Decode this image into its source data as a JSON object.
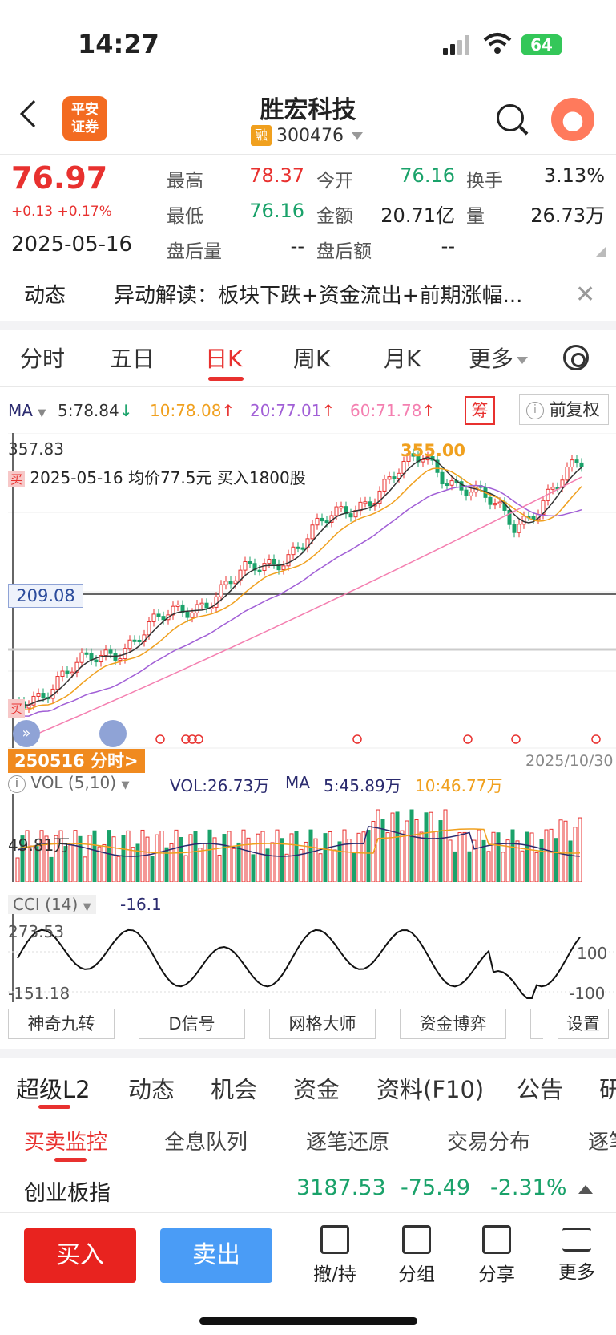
{
  "status": {
    "time": "14:27",
    "battery": "64"
  },
  "header": {
    "broker_logo": "平安\n证券",
    "name": "胜宏科技",
    "badge": "融",
    "code": "300476"
  },
  "quote": {
    "price": "76.97",
    "change": "+0.13 +0.17%",
    "date": "2025-05-16",
    "fields": [
      {
        "label": "最高",
        "value": "78.37",
        "color": "red"
      },
      {
        "label": "今开",
        "value": "76.16",
        "color": "green"
      },
      {
        "label": "换手",
        "value": "3.13%",
        "color": "dark"
      },
      {
        "label": "最低",
        "value": "76.16",
        "color": "green"
      },
      {
        "label": "金额",
        "value": "20.71亿",
        "color": "dark"
      },
      {
        "label": "量",
        "value": "26.73万",
        "color": "dark"
      },
      {
        "label": "盘后量",
        "value": "--",
        "color": "dark"
      },
      {
        "label": "盘后额",
        "value": "--",
        "color": "dark"
      }
    ]
  },
  "news": {
    "tag": "动态",
    "text": "异动解读：板块下跌+资金流出+前期涨幅..."
  },
  "period_tabs": [
    "分时",
    "五日",
    "日K",
    "周K",
    "月K",
    "更多"
  ],
  "ma": {
    "label": "MA",
    "m5": "5:78.84",
    "m10": "10:78.08",
    "m20": "20:77.01",
    "m60": "60:71.78",
    "chou": "筹",
    "fuquan": "前复权"
  },
  "kline": {
    "top_value": "357.83",
    "high_mark": "355.00",
    "trade_note_tag": "买",
    "trade_note": "2025-05-16 均价77.5元 买入1800股",
    "price_tag": "209.08",
    "left_buy_tag": "买",
    "end_date": "2025/10/30",
    "fenshi_button": "250516 分时>"
  },
  "volume": {
    "label": "VOL (5,10)",
    "vol": "VOL:26.73万",
    "ma_label": "MA",
    "ma5": "5:45.89万",
    "ma10": "10:46.77万",
    "axis_value": "49.81万"
  },
  "cci": {
    "label": "CCI (14)",
    "value": "-16.1",
    "max": "273.53",
    "min": "-151.18",
    "level_hi": "100",
    "level_lo": "-100"
  },
  "tools": [
    "神奇九转",
    "D信号",
    "网格大师",
    "资金博弈",
    "设置"
  ],
  "feature_tabs": [
    "超级L2",
    "动态",
    "机会",
    "资金",
    "资料(F10)",
    "公告",
    "研"
  ],
  "sub_tabs": [
    "买卖监控",
    "全息队列",
    "逐笔还原",
    "交易分布",
    "逐笔"
  ],
  "index": {
    "name": "创业板指",
    "value": "3187.53",
    "change": "-75.49",
    "pct": "-2.31%"
  },
  "actions": {
    "buy": "买入",
    "sell": "卖出",
    "items": [
      "撤/持",
      "分组",
      "分享",
      "更多"
    ]
  },
  "colors": {
    "up": "#e8312f",
    "down": "#1aa26a",
    "ma5": "#333333",
    "ma10": "#f0a01e",
    "ma20": "#a15fd6",
    "ma60": "#f47fb0"
  }
}
